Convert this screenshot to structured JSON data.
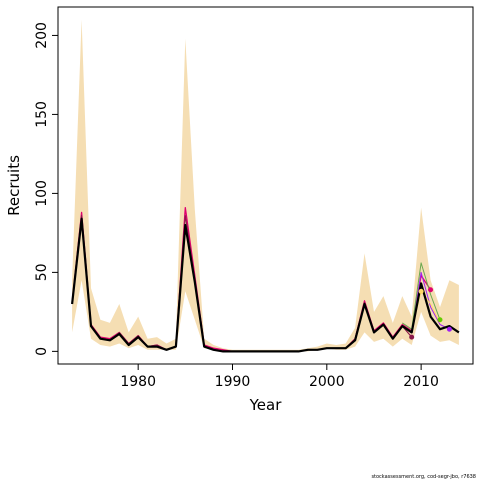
{
  "chart_data": {
    "type": "line",
    "xlabel": "Year",
    "ylabel": "Recruits",
    "xlim": [
      1971.5,
      2015.5
    ],
    "ylim": [
      -8,
      218
    ],
    "xticks": [
      1980,
      1990,
      2000,
      2010
    ],
    "yticks": [
      0,
      50,
      100,
      150,
      200
    ],
    "grid": false,
    "band_color": "#f5deb3",
    "x": [
      1973,
      1974,
      1975,
      1976,
      1977,
      1978,
      1979,
      1980,
      1981,
      1982,
      1983,
      1984,
      1985,
      1986,
      1987,
      1988,
      1989,
      1990,
      1991,
      1992,
      1993,
      1994,
      1995,
      1996,
      1997,
      1998,
      1999,
      2000,
      2001,
      2002,
      2003,
      2004,
      2005,
      2006,
      2007,
      2008,
      2009,
      2010,
      2011,
      2012,
      2013,
      2014
    ],
    "band_upper": [
      45,
      210,
      40,
      20,
      18,
      30,
      12,
      22,
      8,
      9,
      5,
      8,
      198,
      90,
      8,
      4,
      2,
      1,
      1,
      1,
      1,
      1,
      1,
      1,
      1,
      2,
      3,
      5,
      4,
      5,
      15,
      62,
      25,
      35,
      18,
      35,
      22,
      91,
      45,
      28,
      45,
      42
    ],
    "band_lower": [
      12,
      45,
      8,
      4,
      3,
      5,
      2,
      4,
      1,
      1,
      1,
      1,
      38,
      20,
      2,
      1,
      0,
      0,
      0,
      0,
      0,
      0,
      0,
      0,
      0,
      0,
      1,
      2,
      1,
      1,
      3,
      12,
      6,
      8,
      3,
      8,
      4,
      25,
      10,
      6,
      7,
      4
    ],
    "series": [
      {
        "color": "#000000",
        "width": 2.2,
        "x": [
          1973,
          1974,
          1975,
          1976,
          1977,
          1978,
          1979,
          1980,
          1981,
          1982,
          1983,
          1984,
          1985,
          1986,
          1987,
          1988,
          1989,
          1990,
          1991,
          1992,
          1993,
          1994,
          1995,
          1996,
          1997,
          1998,
          1999,
          2000,
          2001,
          2002,
          2003,
          2004,
          2005,
          2006,
          2007,
          2008,
          2009,
          2010,
          2011,
          2012,
          2013,
          2014
        ],
        "y": [
          30,
          84,
          16,
          8,
          7,
          11,
          4,
          9,
          3,
          3,
          1,
          3,
          80,
          44,
          3,
          1,
          0,
          0,
          0,
          0,
          0,
          0,
          0,
          0,
          0,
          1,
          1,
          2,
          2,
          2,
          7,
          30,
          12,
          17,
          8,
          16,
          12,
          43,
          22,
          14,
          16,
          12
        ]
      },
      {
        "color": "#e0006e",
        "width": 1.3,
        "x": [
          1973,
          1974,
          1975,
          1976,
          1977,
          1978,
          1979,
          1980,
          1981,
          1982,
          1983,
          1984,
          1985,
          1986,
          1987,
          1988,
          1989,
          1990,
          1991,
          1992,
          1993,
          1994,
          1995,
          1996,
          1997,
          1998,
          1999,
          2000,
          2001,
          2002,
          2003,
          2004,
          2005,
          2006,
          2007,
          2008,
          2009,
          2010,
          2011
        ],
        "y": [
          31,
          88,
          17,
          9,
          8,
          12,
          5,
          10,
          3,
          4,
          1,
          3,
          91,
          48,
          4,
          2,
          1,
          0,
          0,
          0,
          0,
          0,
          0,
          0,
          0,
          1,
          1,
          2,
          2,
          2,
          8,
          32,
          13,
          18,
          9,
          17,
          13,
          48,
          39
        ]
      },
      {
        "color": "#8b1a4a",
        "width": 1.1,
        "x": [
          1973,
          1974,
          1975,
          1976,
          1977,
          1978,
          1979,
          1980,
          1981,
          1982,
          1983,
          1984,
          1985,
          1986,
          1987,
          1988,
          1989,
          1990,
          1991,
          1992,
          1993,
          1994,
          1995,
          1996,
          1997,
          1998,
          1999,
          2000,
          2001,
          2002,
          2003,
          2004,
          2005,
          2006,
          2007,
          2008,
          2009
        ],
        "y": [
          30,
          86,
          17,
          8,
          7,
          12,
          5,
          10,
          3,
          4,
          1,
          3,
          86,
          46,
          3,
          1,
          0,
          0,
          0,
          0,
          0,
          0,
          0,
          0,
          0,
          1,
          1,
          2,
          2,
          2,
          8,
          31,
          12,
          17,
          8,
          16,
          9
        ]
      },
      {
        "color": "#a020f0",
        "width": 1.0,
        "x": [
          2009,
          2010,
          2011,
          2012,
          2013
        ],
        "y": [
          12,
          50,
          28,
          17,
          14
        ]
      },
      {
        "color": "#6aa84f",
        "width": 1.0,
        "x": [
          2008,
          2009,
          2010,
          2011,
          2012
        ],
        "y": [
          18,
          14,
          56,
          36,
          20
        ]
      },
      {
        "color": "#ffd966",
        "width": 1.0,
        "x": [
          2009,
          2010,
          2011,
          2012
        ],
        "y": [
          13,
          38,
          30,
          18
        ]
      }
    ],
    "points": [
      {
        "x": 2009,
        "y": 9,
        "color": "#8b1a4a"
      },
      {
        "x": 2010,
        "y": 38,
        "color": "#ffd966"
      },
      {
        "x": 2011,
        "y": 39,
        "color": "#e0006e"
      },
      {
        "x": 2012,
        "y": 20,
        "color": "#66cc00"
      },
      {
        "x": 2013,
        "y": 14,
        "color": "#a020f0"
      }
    ]
  },
  "caption": "stockassessment.org, cod-segr-jbo, r7638"
}
